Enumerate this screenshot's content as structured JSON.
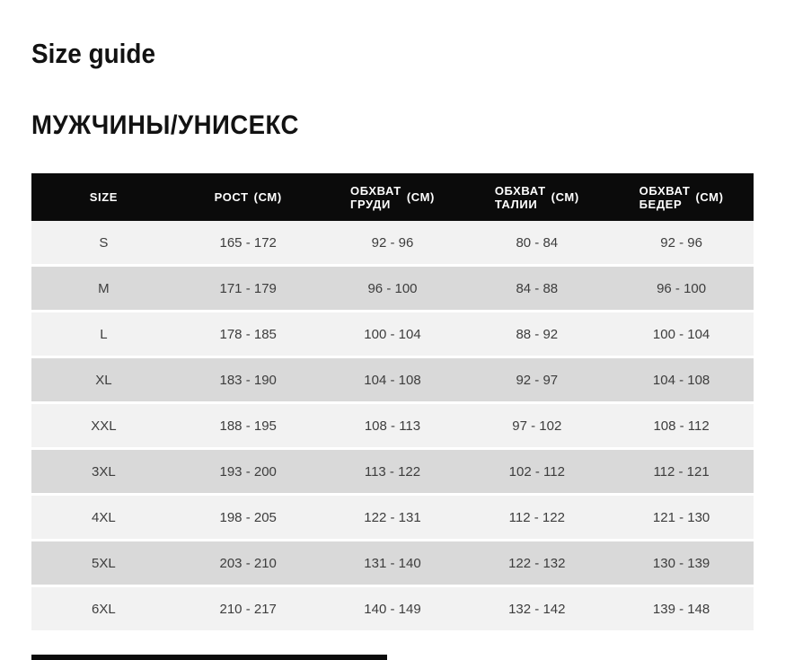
{
  "page": {
    "title": "Size guide",
    "section_title": "МУЖЧИНЫ/УНИСЕКС"
  },
  "size_table": {
    "columns": [
      {
        "name": "size",
        "lines": [
          "SIZE"
        ],
        "unit": ""
      },
      {
        "name": "height",
        "lines": [
          "РОСТ"
        ],
        "unit": "(СМ)"
      },
      {
        "name": "chest",
        "lines": [
          "ОБХВАТ",
          "ГРУДИ"
        ],
        "unit": "(СМ)"
      },
      {
        "name": "waist",
        "lines": [
          "ОБХВАТ",
          "ТАЛИИ"
        ],
        "unit": "(СМ)"
      },
      {
        "name": "hips",
        "lines": [
          "ОБХВАТ",
          "БЕДЕР"
        ],
        "unit": "(СМ)"
      }
    ],
    "rows": [
      {
        "size": "S",
        "height": "165 - 172",
        "chest": "92 - 96",
        "waist": "80 - 84",
        "hips": "92 - 96"
      },
      {
        "size": "M",
        "height": "171 - 179",
        "chest": "96 - 100",
        "waist": "84 - 88",
        "hips": "96 - 100"
      },
      {
        "size": "L",
        "height": "178 - 185",
        "chest": "100 - 104",
        "waist": "88 - 92",
        "hips": "100 - 104"
      },
      {
        "size": "XL",
        "height": "183 - 190",
        "chest": "104 - 108",
        "waist": "92 - 97",
        "hips": "104 - 108"
      },
      {
        "size": "XXL",
        "height": "188 - 195",
        "chest": "108 - 113",
        "waist": "97 - 102",
        "hips": "108 - 112"
      },
      {
        "size": "3XL",
        "height": "193 - 200",
        "chest": "113 - 122",
        "waist": "102 - 112",
        "hips": "112 - 121"
      },
      {
        "size": "4XL",
        "height": "198 - 205",
        "chest": "122 - 131",
        "waist": "112 - 122",
        "hips": "121 - 130"
      },
      {
        "size": "5XL",
        "height": "203 - 210",
        "chest": "131 - 140",
        "waist": "122 - 132",
        "hips": "130 - 139"
      },
      {
        "size": "6XL",
        "height": "210 - 217",
        "chest": "140 - 149",
        "waist": "132 - 142",
        "hips": "139 - 148"
      }
    ]
  },
  "colors": {
    "header_bg": "#0b0b0b",
    "header_text": "#ffffff",
    "row_light": "#f2f2f2",
    "row_dark": "#d9d9d9",
    "cell_text": "#3d3d3d",
    "title_text": "#121212"
  }
}
